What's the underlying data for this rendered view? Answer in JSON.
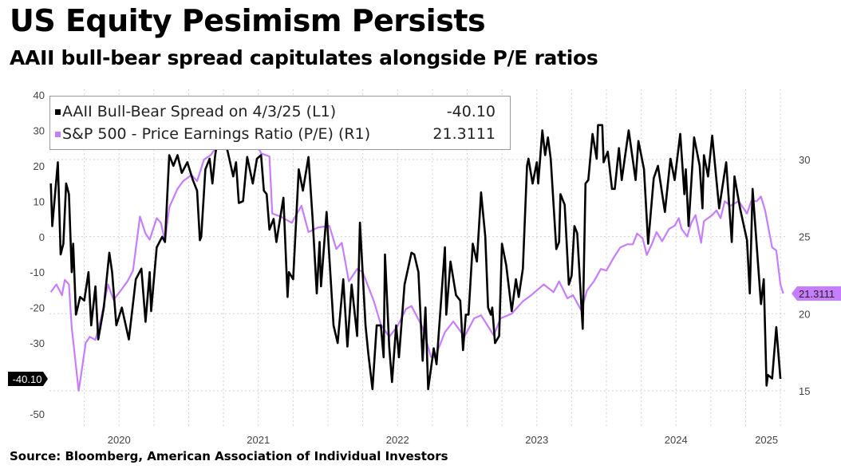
{
  "title": "US Equity Pesimism Persists",
  "subtitle": "AAII bull-bear spread capitulates alongside P/E ratios",
  "source": "Source: Bloomberg, American Association of Individual Investors",
  "chart_data": {
    "type": "line",
    "x_unit": "year",
    "x_ticks": [
      "2020",
      "2021",
      "2022",
      "2023",
      "2024",
      "2025"
    ],
    "xlim": [
      2020.0,
      2025.3
    ],
    "left_axis": {
      "ylim": [
        -50,
        40
      ],
      "ticks": [
        "40",
        "30",
        "20",
        "10",
        "0",
        "-10",
        "-20",
        "-30",
        "-50"
      ]
    },
    "right_axis": {
      "ylim": [
        15,
        34
      ],
      "ticks": [
        "30",
        "25",
        "20",
        "15"
      ]
    },
    "grid": true,
    "legend_position": "top-left",
    "series": [
      {
        "name": "AAII Bull-Bear Spread on 4/3/25 (L1)",
        "axis": "left",
        "color": "#000000",
        "last_value": "-40.10",
        "points": [
          [
            2020.01,
            15
          ],
          [
            2020.02,
            3
          ],
          [
            2020.06,
            21
          ],
          [
            2020.08,
            -5
          ],
          [
            2020.1,
            -2
          ],
          [
            2020.12,
            15
          ],
          [
            2020.14,
            12
          ],
          [
            2020.16,
            -10
          ],
          [
            2020.17,
            -2
          ],
          [
            2020.19,
            -22
          ],
          [
            2020.22,
            -17
          ],
          [
            2020.25,
            -18
          ],
          [
            2020.28,
            -10
          ],
          [
            2020.3,
            -25
          ],
          [
            2020.33,
            -14
          ],
          [
            2020.35,
            -29
          ],
          [
            2020.39,
            -20
          ],
          [
            2020.43,
            -4.5
          ],
          [
            2020.45,
            -10
          ],
          [
            2020.48,
            -25
          ],
          [
            2020.52,
            -20
          ],
          [
            2020.57,
            -29
          ],
          [
            2020.62,
            -12
          ],
          [
            2020.66,
            -9
          ],
          [
            2020.69,
            -24
          ],
          [
            2020.72,
            -10
          ],
          [
            2020.73,
            -21
          ],
          [
            2020.77,
            -3
          ],
          [
            2020.81,
            0
          ],
          [
            2020.83,
            -1.5
          ],
          [
            2020.86,
            23
          ],
          [
            2020.89,
            20
          ],
          [
            2020.92,
            23
          ],
          [
            2020.95,
            18
          ],
          [
            2020.99,
            21
          ],
          [
            2021.03,
            16
          ],
          [
            2021.06,
            13
          ],
          [
            2021.08,
            -1
          ],
          [
            2021.09,
            0
          ],
          [
            2021.12,
            19
          ],
          [
            2021.15,
            22
          ],
          [
            2021.17,
            15
          ],
          [
            2021.19,
            23
          ],
          [
            2021.23,
            33
          ],
          [
            2021.25,
            28
          ],
          [
            2021.28,
            24
          ],
          [
            2021.32,
            17
          ],
          [
            2021.34,
            21
          ],
          [
            2021.36,
            9.5
          ],
          [
            2021.39,
            10
          ],
          [
            2021.42,
            22.5
          ],
          [
            2021.46,
            15
          ],
          [
            2021.49,
            22
          ],
          [
            2021.52,
            23
          ],
          [
            2021.54,
            13
          ],
          [
            2021.56,
            12
          ],
          [
            2021.58,
            2
          ],
          [
            2021.61,
            5
          ],
          [
            2021.63,
            -1.5
          ],
          [
            2021.68,
            11
          ],
          [
            2021.71,
            -17
          ],
          [
            2021.72,
            -10
          ],
          [
            2021.75,
            -12
          ],
          [
            2021.79,
            19
          ],
          [
            2021.82,
            13
          ],
          [
            2021.86,
            22.5
          ],
          [
            2021.89,
            5
          ],
          [
            2021.92,
            -16
          ],
          [
            2021.94,
            -1.5
          ],
          [
            2021.95,
            -14
          ],
          [
            2021.99,
            7
          ],
          [
            2022.04,
            -25
          ],
          [
            2022.07,
            -30
          ],
          [
            2022.11,
            -12
          ],
          [
            2022.14,
            -31
          ],
          [
            2022.17,
            -13.5
          ],
          [
            2022.21,
            -28
          ],
          [
            2022.23,
            4
          ],
          [
            2022.27,
            -25
          ],
          [
            2022.29,
            -33
          ],
          [
            2022.32,
            -43
          ],
          [
            2022.35,
            -25
          ],
          [
            2022.38,
            -25
          ],
          [
            2022.4,
            -34
          ],
          [
            2022.41,
            -5
          ],
          [
            2022.44,
            -31
          ],
          [
            2022.46,
            -41
          ],
          [
            2022.49,
            -25
          ],
          [
            2022.51,
            -34
          ],
          [
            2022.55,
            -13.5
          ],
          [
            2022.6,
            -4.5
          ],
          [
            2022.62,
            -5
          ],
          [
            2022.65,
            -10
          ],
          [
            2022.68,
            -35
          ],
          [
            2022.7,
            -20
          ],
          [
            2022.72,
            -43
          ],
          [
            2022.76,
            -31.5
          ],
          [
            2022.78,
            -36
          ],
          [
            2022.84,
            -3
          ],
          [
            2022.85,
            -22
          ],
          [
            2022.88,
            -7
          ],
          [
            2022.92,
            -16.5
          ],
          [
            2022.95,
            -18
          ],
          [
            2022.97,
            -32
          ],
          [
            2022.99,
            -22
          ],
          [
            2023.01,
            -22
          ],
          [
            2023.04,
            -2
          ],
          [
            2023.07,
            -7
          ],
          [
            2023.1,
            12.5
          ],
          [
            2023.13,
            0
          ],
          [
            2023.15,
            -20
          ],
          [
            2023.17,
            -22
          ],
          [
            2023.18,
            -20
          ],
          [
            2023.2,
            -30
          ],
          [
            2023.23,
            -28
          ],
          [
            2023.25,
            -2
          ],
          [
            2023.28,
            -8
          ],
          [
            2023.32,
            -21
          ],
          [
            2023.35,
            -12
          ],
          [
            2023.37,
            -17
          ],
          [
            2023.4,
            -9
          ],
          [
            2023.43,
            20
          ],
          [
            2023.44,
            22
          ],
          [
            2023.47,
            15
          ],
          [
            2023.5,
            21
          ],
          [
            2023.51,
            15
          ],
          [
            2023.54,
            30
          ],
          [
            2023.56,
            23
          ],
          [
            2023.58,
            28
          ],
          [
            2023.6,
            22
          ],
          [
            2023.64,
            -3.5
          ],
          [
            2023.66,
            -1.5
          ],
          [
            2023.67,
            12
          ],
          [
            2023.7,
            9
          ],
          [
            2023.73,
            -13.5
          ],
          [
            2023.75,
            -11
          ],
          [
            2023.77,
            3
          ],
          [
            2023.79,
            1
          ],
          [
            2023.83,
            -26
          ],
          [
            2023.85,
            15
          ],
          [
            2023.87,
            16
          ],
          [
            2023.9,
            29
          ],
          [
            2023.93,
            22
          ],
          [
            2023.94,
            31.5
          ],
          [
            2023.97,
            31.5
          ],
          [
            2023.98,
            21
          ],
          [
            2024.01,
            24
          ],
          [
            2024.04,
            13.5
          ],
          [
            2024.06,
            13.5
          ],
          [
            2024.09,
            25
          ],
          [
            2024.11,
            16
          ],
          [
            2024.16,
            30
          ],
          [
            2024.21,
            16
          ],
          [
            2024.23,
            27
          ],
          [
            2024.27,
            19
          ],
          [
            2024.3,
            -2
          ],
          [
            2024.34,
            16.5
          ],
          [
            2024.37,
            20
          ],
          [
            2024.42,
            7
          ],
          [
            2024.46,
            22
          ],
          [
            2024.49,
            16
          ],
          [
            2024.53,
            29
          ],
          [
            2024.56,
            12
          ],
          [
            2024.57,
            19
          ],
          [
            2024.59,
            3
          ],
          [
            2024.63,
            28
          ],
          [
            2024.67,
            20
          ],
          [
            2024.69,
            8
          ],
          [
            2024.7,
            23
          ],
          [
            2024.73,
            17
          ],
          [
            2024.76,
            28.5
          ],
          [
            2024.81,
            8
          ],
          [
            2024.86,
            21
          ],
          [
            2024.9,
            -1.5
          ],
          [
            2024.92,
            17
          ],
          [
            2024.96,
            8
          ],
          [
            2025.01,
            -1
          ],
          [
            2025.03,
            -16
          ],
          [
            2025.05,
            13.5
          ],
          [
            2025.11,
            -19
          ],
          [
            2025.13,
            -12
          ],
          [
            2025.15,
            -42
          ],
          [
            2025.16,
            -39
          ],
          [
            2025.19,
            -40
          ],
          [
            2025.22,
            -25.5
          ],
          [
            2025.25,
            -40.1
          ]
        ]
      },
      {
        "name": "S&P 500 - Price Earnings Ratio (P/E) (R1)",
        "axis": "right",
        "color": "#c77dff",
        "last_value": "21.3111",
        "points": [
          [
            2020.01,
            21.4
          ],
          [
            2020.05,
            21.9
          ],
          [
            2020.09,
            21.2
          ],
          [
            2020.11,
            22.2
          ],
          [
            2020.14,
            21.9
          ],
          [
            2020.16,
            19.1
          ],
          [
            2020.21,
            15
          ],
          [
            2020.23,
            16.2
          ],
          [
            2020.26,
            18.1
          ],
          [
            2020.29,
            18.5
          ],
          [
            2020.33,
            18.3
          ],
          [
            2020.37,
            19.7
          ],
          [
            2020.42,
            21.9
          ],
          [
            2020.46,
            20.9
          ],
          [
            2020.52,
            21.6
          ],
          [
            2020.56,
            22.1
          ],
          [
            2020.6,
            22.8
          ],
          [
            2020.65,
            26.3
          ],
          [
            2020.69,
            25.2
          ],
          [
            2020.72,
            24.8
          ],
          [
            2020.77,
            26.2
          ],
          [
            2020.8,
            25.9
          ],
          [
            2020.83,
            24.7
          ],
          [
            2020.86,
            26.9
          ],
          [
            2020.92,
            28.1
          ],
          [
            2020.96,
            28.6
          ],
          [
            2021.02,
            29
          ],
          [
            2021.06,
            28.6
          ],
          [
            2021.11,
            30
          ],
          [
            2021.16,
            30.3
          ],
          [
            2021.25,
            31.5
          ],
          [
            2021.36,
            31.2
          ],
          [
            2021.45,
            31.8
          ],
          [
            2021.52,
            30.4
          ],
          [
            2021.58,
            30.2
          ],
          [
            2021.6,
            26.5
          ],
          [
            2021.66,
            26.3
          ],
          [
            2021.74,
            25.9
          ],
          [
            2021.81,
            27
          ],
          [
            2021.86,
            25.3
          ],
          [
            2021.93,
            25.6
          ],
          [
            2022.01,
            25.7
          ],
          [
            2022.06,
            24.2
          ],
          [
            2022.1,
            24.6
          ],
          [
            2022.15,
            22.1
          ],
          [
            2022.21,
            22.9
          ],
          [
            2022.25,
            22.7
          ],
          [
            2022.33,
            20.8
          ],
          [
            2022.38,
            19.3
          ],
          [
            2022.44,
            18.5
          ],
          [
            2022.5,
            19.2
          ],
          [
            2022.56,
            20.3
          ],
          [
            2022.6,
            20.5
          ],
          [
            2022.68,
            19.1
          ],
          [
            2022.74,
            17.2
          ],
          [
            2022.77,
            17.2
          ],
          [
            2022.84,
            18.8
          ],
          [
            2022.9,
            19.5
          ],
          [
            2022.98,
            18.5
          ],
          [
            2023.05,
            19.7
          ],
          [
            2023.1,
            19.9
          ],
          [
            2023.19,
            18.6
          ],
          [
            2023.24,
            19.7
          ],
          [
            2023.32,
            20
          ],
          [
            2023.4,
            20.8
          ],
          [
            2023.46,
            21.2
          ],
          [
            2023.55,
            21.9
          ],
          [
            2023.62,
            21.4
          ],
          [
            2023.66,
            22.1
          ],
          [
            2023.72,
            21
          ],
          [
            2023.76,
            21.2
          ],
          [
            2023.82,
            20.2
          ],
          [
            2023.86,
            21.5
          ],
          [
            2023.91,
            22.1
          ],
          [
            2023.96,
            22.9
          ],
          [
            2024.0,
            22.8
          ],
          [
            2024.05,
            23.6
          ],
          [
            2024.1,
            24.3
          ],
          [
            2024.15,
            24.5
          ],
          [
            2024.19,
            24.5
          ],
          [
            2024.22,
            25.2
          ],
          [
            2024.26,
            24.9
          ],
          [
            2024.29,
            23.8
          ],
          [
            2024.33,
            24.6
          ],
          [
            2024.36,
            25.3
          ],
          [
            2024.4,
            24.7
          ],
          [
            2024.45,
            25.5
          ],
          [
            2024.49,
            25.7
          ],
          [
            2024.52,
            26.2
          ],
          [
            2024.54,
            25.5
          ],
          [
            2024.58,
            25
          ],
          [
            2024.61,
            25.9
          ],
          [
            2024.64,
            26.4
          ],
          [
            2024.68,
            24.6
          ],
          [
            2024.7,
            26
          ],
          [
            2024.76,
            26.4
          ],
          [
            2024.79,
            26.7
          ],
          [
            2024.82,
            26.2
          ],
          [
            2024.85,
            27.3
          ],
          [
            2024.89,
            27
          ],
          [
            2024.95,
            27.3
          ],
          [
            2025.01,
            26.5
          ],
          [
            2025.04,
            27.3
          ],
          [
            2025.08,
            27.3
          ],
          [
            2025.11,
            27.6
          ],
          [
            2025.14,
            26.7
          ],
          [
            2025.19,
            24.3
          ],
          [
            2025.22,
            24.1
          ],
          [
            2025.25,
            21.9
          ],
          [
            2025.27,
            21.3111
          ]
        ]
      }
    ]
  }
}
